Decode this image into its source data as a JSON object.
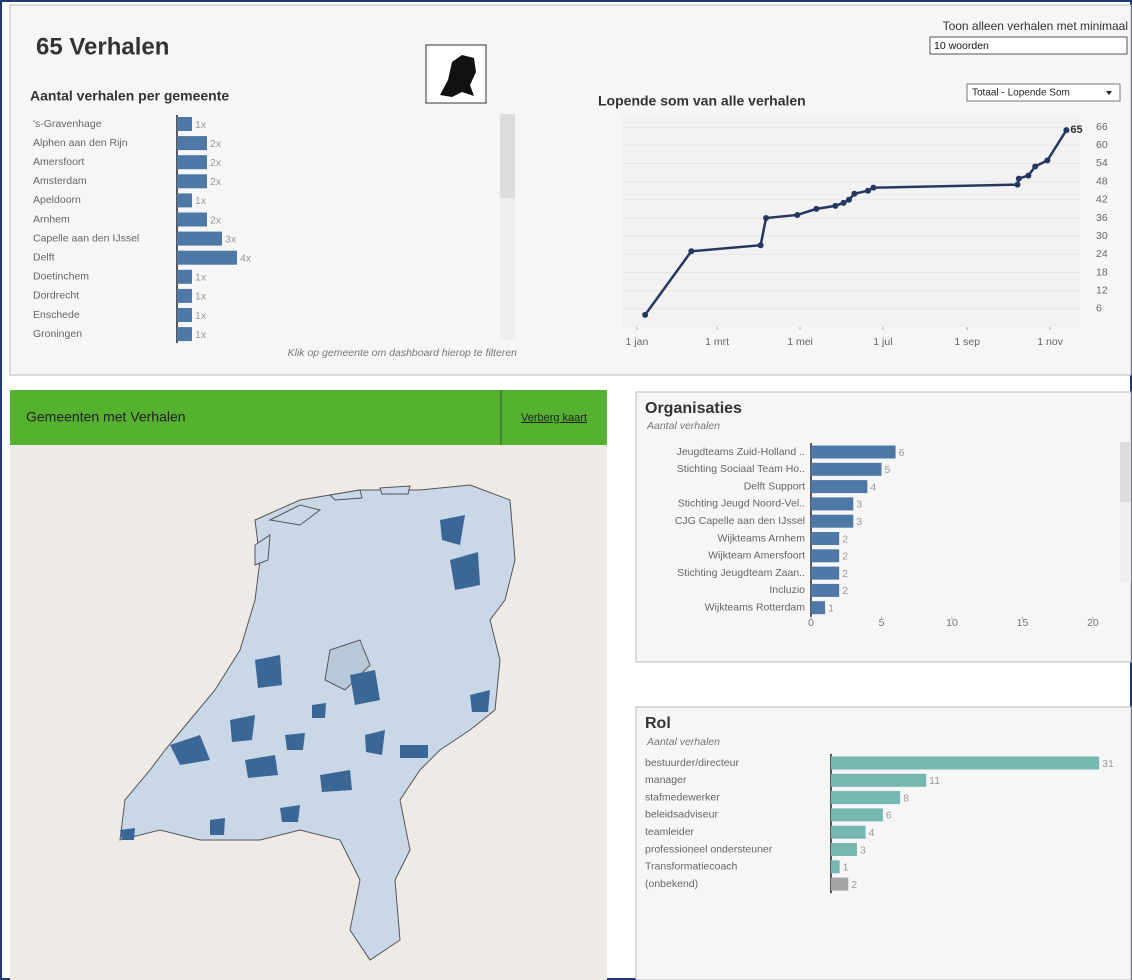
{
  "dashboard": {
    "title": "65 Verhalen",
    "filter_label": "Toon alleen verhalen met minimaal",
    "filter_value": "10 woorden",
    "dropdown": "Totaal - Lopende Som",
    "hint": "Klik op gemeente om dashboard hierop te filteren",
    "map_title": "Gemeenten met Verhalen",
    "map_button": "Verberg kaart"
  },
  "chart_data": [
    {
      "type": "bar",
      "title": "Aantal verhalen per gemeente",
      "color": "#4e79a7",
      "categories": [
        "'s-Gravenhage",
        "Alphen aan den Rijn",
        "Amersfoort",
        "Amsterdam",
        "Apeldoorn",
        "Arnhem",
        "Capelle aan den IJssel",
        "Delft",
        "Doetinchem",
        "Dordrecht",
        "Enschede",
        "Groningen"
      ],
      "values": [
        1,
        2,
        2,
        2,
        1,
        2,
        3,
        4,
        1,
        1,
        1,
        1
      ],
      "value_labels": [
        "1x",
        "2x",
        "2x",
        "2x",
        "1x",
        "2x",
        "3x",
        "4x",
        "1x",
        "1x",
        "1x",
        "1x"
      ]
    },
    {
      "type": "line",
      "title": "Lopende som van alle verhalen",
      "color": "#25375f",
      "x": [
        6,
        40,
        91,
        95,
        118,
        132,
        146,
        152,
        156,
        160,
        170,
        174,
        280,
        281,
        288,
        293,
        302,
        316
      ],
      "values": [
        4,
        25,
        27,
        36,
        37,
        39,
        40,
        41,
        42,
        44,
        45,
        46,
        47,
        49,
        50,
        53,
        55,
        65
      ],
      "xlim": [
        -11,
        326
      ],
      "ylim": [
        0,
        70
      ],
      "xticks": [
        {
          "value": 0,
          "label": "1 jan"
        },
        {
          "value": 59,
          "label": "1 mrt"
        },
        {
          "value": 120,
          "label": "1 mei"
        },
        {
          "value": 181,
          "label": "1 jul"
        },
        {
          "value": 243,
          "label": "1 sep"
        },
        {
          "value": 304,
          "label": "1 nov"
        }
      ],
      "yticks": [
        6,
        12,
        18,
        24,
        30,
        36,
        42,
        48,
        54,
        60,
        66
      ],
      "grid": true
    },
    {
      "type": "bar",
      "title": "Organisaties",
      "subtitle": "Aantal verhalen",
      "color": "#4e79a7",
      "categories": [
        "Jeugdteams Zuid-Holland ..",
        "Stichting Sociaal Team Ho..",
        "Delft Support",
        "Stichting Jeugd Noord-Vel..",
        "CJG Capelle aan den IJssel",
        "Wijkteams Arnhem",
        "Wijkteam Amersfoort",
        "Stichting Jeugdteam Zaan..",
        "Incluzio",
        "Wijkteams Rotterdam"
      ],
      "values": [
        6,
        5,
        4,
        3,
        3,
        2,
        2,
        2,
        2,
        1
      ],
      "xlim": [
        0,
        20.5
      ],
      "xticks": [
        0,
        5,
        10,
        15,
        20
      ]
    },
    {
      "type": "bar",
      "title": "Rol",
      "subtitle": "Aantal verhalen",
      "colors": [
        "#76b7b2",
        "#76b7b2",
        "#76b7b2",
        "#76b7b2",
        "#76b7b2",
        "#76b7b2",
        "#76b7b2",
        "#a5a5a5"
      ],
      "categories": [
        "bestuurder/directeur",
        "manager",
        "stafmedewerker",
        "beleidsadviseur",
        "teamleider",
        "professioneel ondersteuner",
        "Transformatiecoach",
        "(onbekend)"
      ],
      "values": [
        31,
        11,
        8,
        6,
        4,
        3,
        1,
        2
      ]
    }
  ]
}
